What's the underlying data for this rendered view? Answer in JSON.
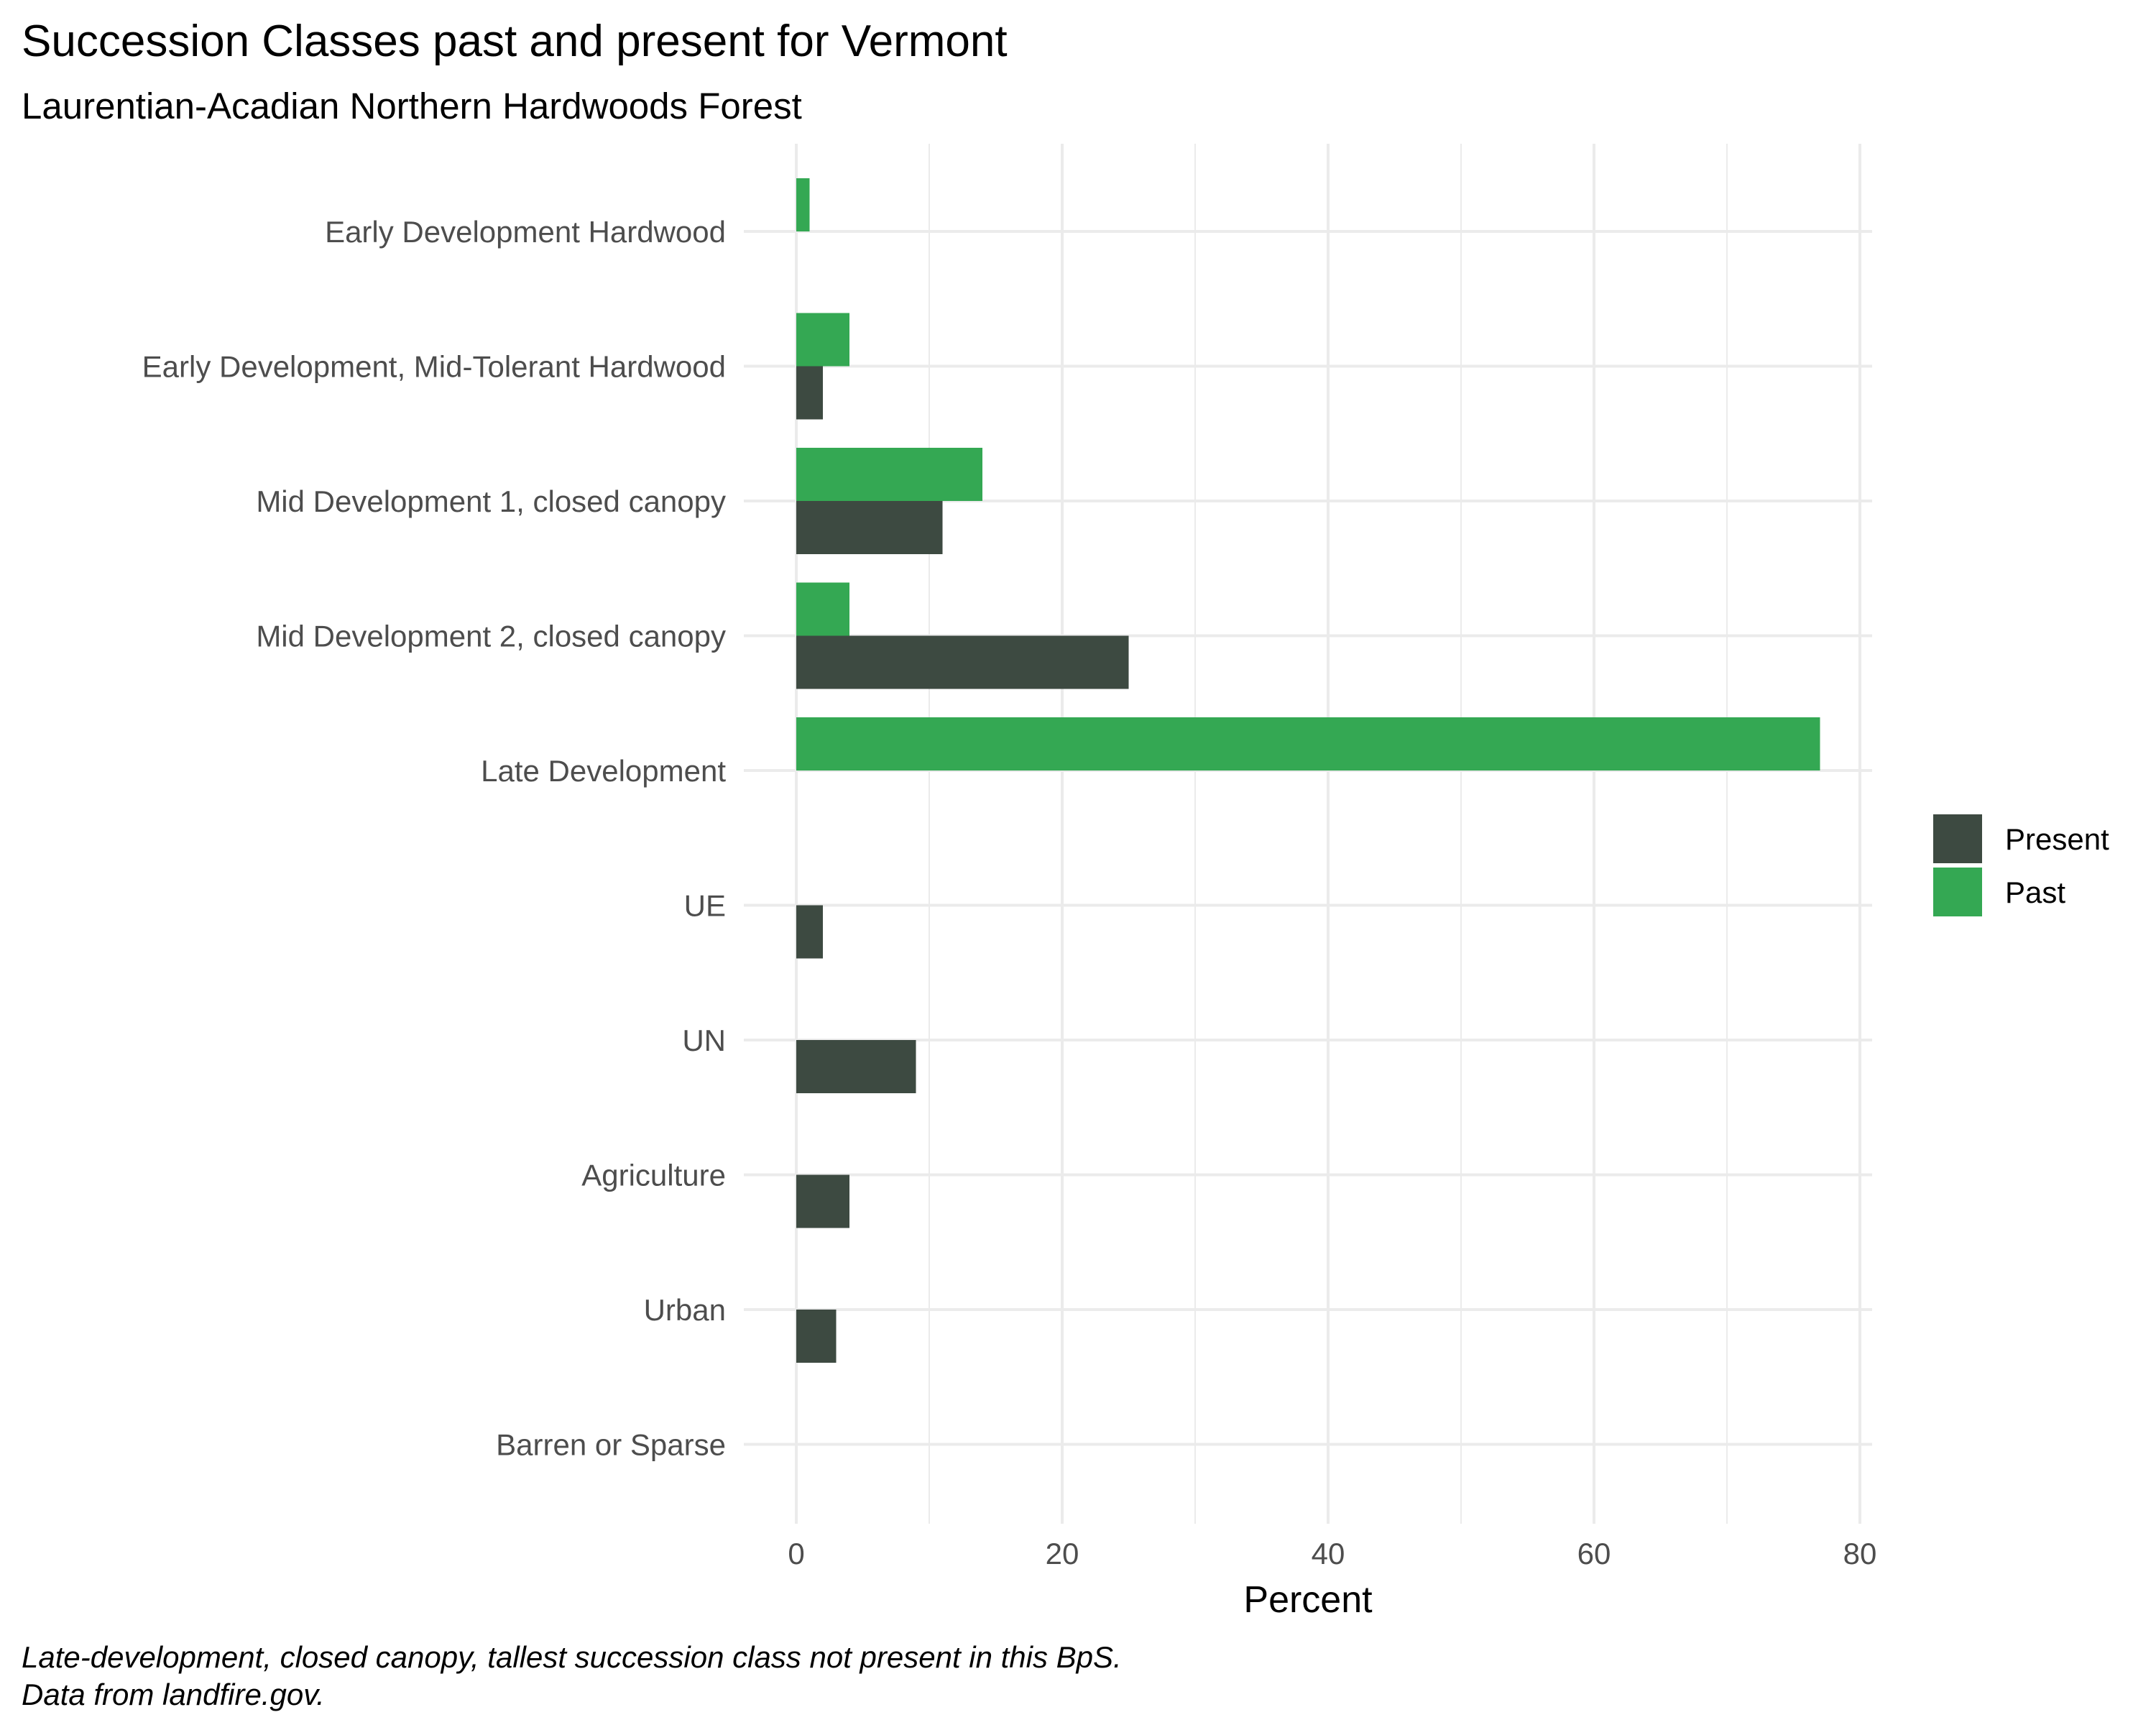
{
  "chart_data": {
    "type": "bar",
    "orientation": "horizontal",
    "title": "Succession Classes past and present for Vermont",
    "subtitle": "Laurentian-Acadian Northern Hardwoods Forest",
    "xlabel": "Percent",
    "ylabel": "",
    "xlim": [
      0,
      80
    ],
    "x_ticks": [
      0,
      20,
      40,
      60,
      80
    ],
    "grid": true,
    "legend_position": "right",
    "categories": [
      "Early Development Hardwood",
      "Early Development, Mid-Tolerant Hardwood",
      "Mid Development 1, closed canopy",
      "Mid Development 2, closed canopy",
      "Late Development",
      "UE",
      "UN",
      "Agriculture",
      "Urban",
      "Barren or Sparse"
    ],
    "series": [
      {
        "name": "Present",
        "color": "#3d4a41",
        "values": [
          0,
          2,
          11,
          25,
          0,
          2,
          9,
          4,
          3,
          0
        ]
      },
      {
        "name": "Past",
        "color": "#34a853",
        "values": [
          1,
          4,
          14,
          4,
          77,
          0,
          0,
          0,
          0,
          0
        ]
      }
    ],
    "caption": [
      "Late-development, closed canopy, tallest succession class not present in this BpS.",
      "Data from landfire.gov."
    ]
  }
}
